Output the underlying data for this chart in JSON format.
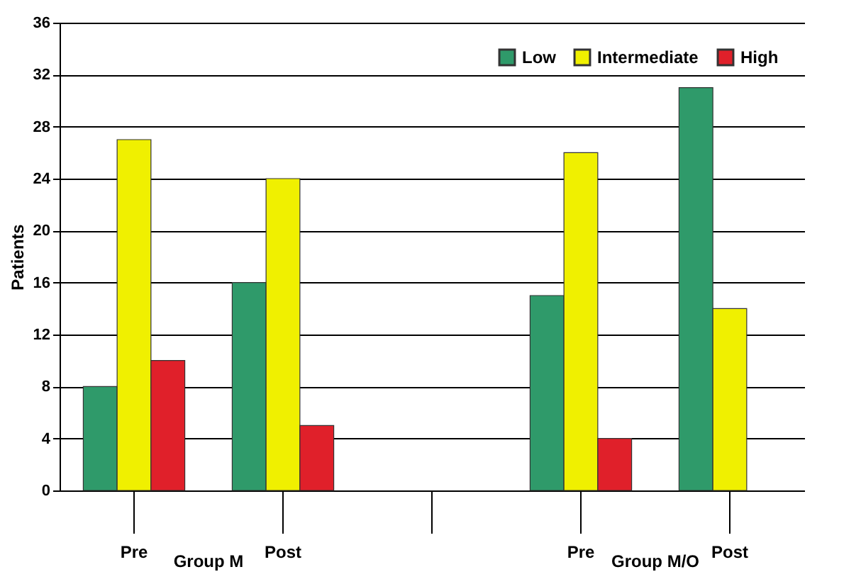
{
  "chart_data": {
    "type": "bar",
    "ylabel": "Patients",
    "categories": [
      "Pre",
      "Post",
      null,
      "Pre",
      "Post"
    ],
    "series": [
      {
        "name": "Low",
        "color": "#2f9a6a",
        "values": [
          8,
          16,
          null,
          15,
          31
        ]
      },
      {
        "name": "Intermediate",
        "color": "#f0f000",
        "values": [
          27,
          24,
          null,
          26,
          14
        ]
      },
      {
        "name": "High",
        "color": "#e0202a",
        "values": [
          10,
          5,
          null,
          4,
          null
        ]
      }
    ],
    "ylim": [
      0,
      36
    ],
    "yticks": [
      0,
      4,
      8,
      12,
      16,
      20,
      24,
      28,
      32,
      36
    ],
    "grid": "y",
    "legend": "top right",
    "annotations": [
      "Group M",
      "Group M/O"
    ]
  }
}
